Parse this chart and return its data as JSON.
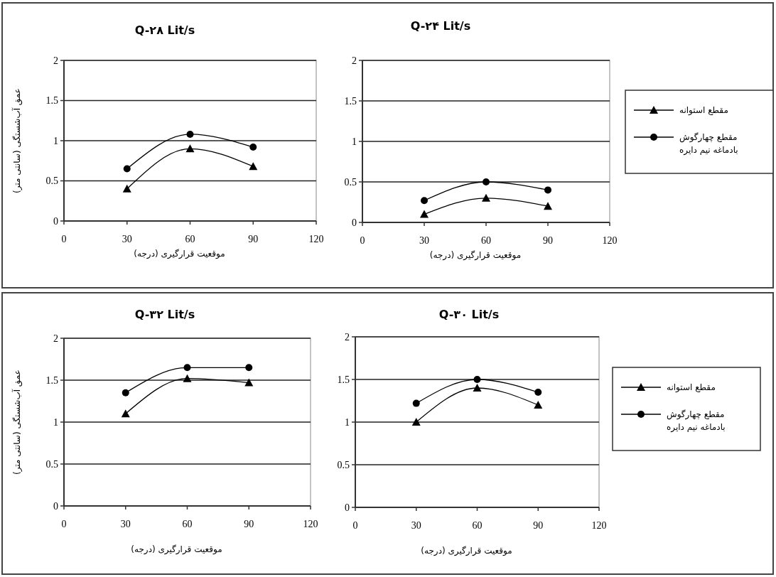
{
  "chart_data": [
    {
      "type": "line",
      "title": "Q-۲۸ Lit/s",
      "xlabel": "موقعیت قرارگیری (درجه)",
      "ylabel": "عمق آب‌شستگی (سانتی متر)",
      "x": [
        30,
        60,
        90
      ],
      "xlim": [
        0,
        120
      ],
      "xticks": [
        0,
        30,
        60,
        90,
        120
      ],
      "ylim": [
        0,
        2
      ],
      "yticks": [
        0,
        0.5,
        1,
        1.5,
        2
      ],
      "grid": "y",
      "legend": false,
      "line_style": "solid",
      "series": [
        {
          "color": "#000000",
          "marker": "triangle",
          "values": [
            0.4,
            0.9,
            0.68
          ]
        },
        {
          "color": "#000000",
          "marker": "circle",
          "values": [
            0.65,
            1.08,
            0.92
          ]
        }
      ]
    },
    {
      "type": "line",
      "title": "Q-۲۴ Lit/s",
      "xlabel": "موقعیت قرارگیری (درجه)",
      "x": [
        30,
        60,
        90
      ],
      "xlim": [
        0,
        120
      ],
      "xticks": [
        0,
        30,
        60,
        90,
        120
      ],
      "ylim": [
        0,
        2
      ],
      "yticks": [
        0,
        0.5,
        1,
        1.5,
        2
      ],
      "grid": "y",
      "legend": "right",
      "line_style": "solid",
      "series": [
        {
          "name": "مقطع استوانه",
          "color": "#000000",
          "marker": "triangle",
          "values": [
            0.1,
            0.3,
            0.2
          ]
        },
        {
          "name": "مقطع چهارگوش بادماغه نیم دایره",
          "color": "#000000",
          "marker": "circle",
          "values": [
            0.27,
            0.5,
            0.4
          ]
        }
      ]
    },
    {
      "type": "line",
      "title": "Q-۳۲ Lit/s",
      "xlabel": "موقعیت قرارگیری (درجه)",
      "ylabel": "عمق آب‌شستگی (سانتی متر)",
      "x": [
        30,
        60,
        90
      ],
      "xlim": [
        0,
        120
      ],
      "xticks": [
        0,
        30,
        60,
        90,
        120
      ],
      "ylim": [
        0,
        2
      ],
      "yticks": [
        0,
        0.5,
        1,
        1.5,
        2
      ],
      "grid": "y",
      "legend": false,
      "line_style": "solid",
      "series": [
        {
          "color": "#000000",
          "marker": "triangle",
          "values": [
            1.1,
            1.52,
            1.47
          ]
        },
        {
          "color": "#000000",
          "marker": "circle",
          "values": [
            1.35,
            1.65,
            1.65
          ]
        }
      ]
    },
    {
      "type": "line",
      "title": "Q-۳۰ Lit/s",
      "xlabel": "موقعیت قرارگیری (درجه)",
      "x": [
        30,
        60,
        90
      ],
      "xlim": [
        0,
        120
      ],
      "xticks": [
        0,
        30,
        60,
        90,
        120
      ],
      "ylim": [
        0,
        2
      ],
      "yticks": [
        0,
        0.5,
        1,
        1.5,
        2
      ],
      "grid": "y",
      "legend": "right",
      "line_style": "solid",
      "series": [
        {
          "name": "مقطع استوانه",
          "color": "#000000",
          "marker": "triangle",
          "values": [
            1.0,
            1.4,
            1.2
          ]
        },
        {
          "name": "مقطع چهارگوش بادماغه نیم دایره",
          "color": "#000000",
          "marker": "circle",
          "values": [
            1.22,
            1.5,
            1.35
          ]
        }
      ]
    }
  ]
}
